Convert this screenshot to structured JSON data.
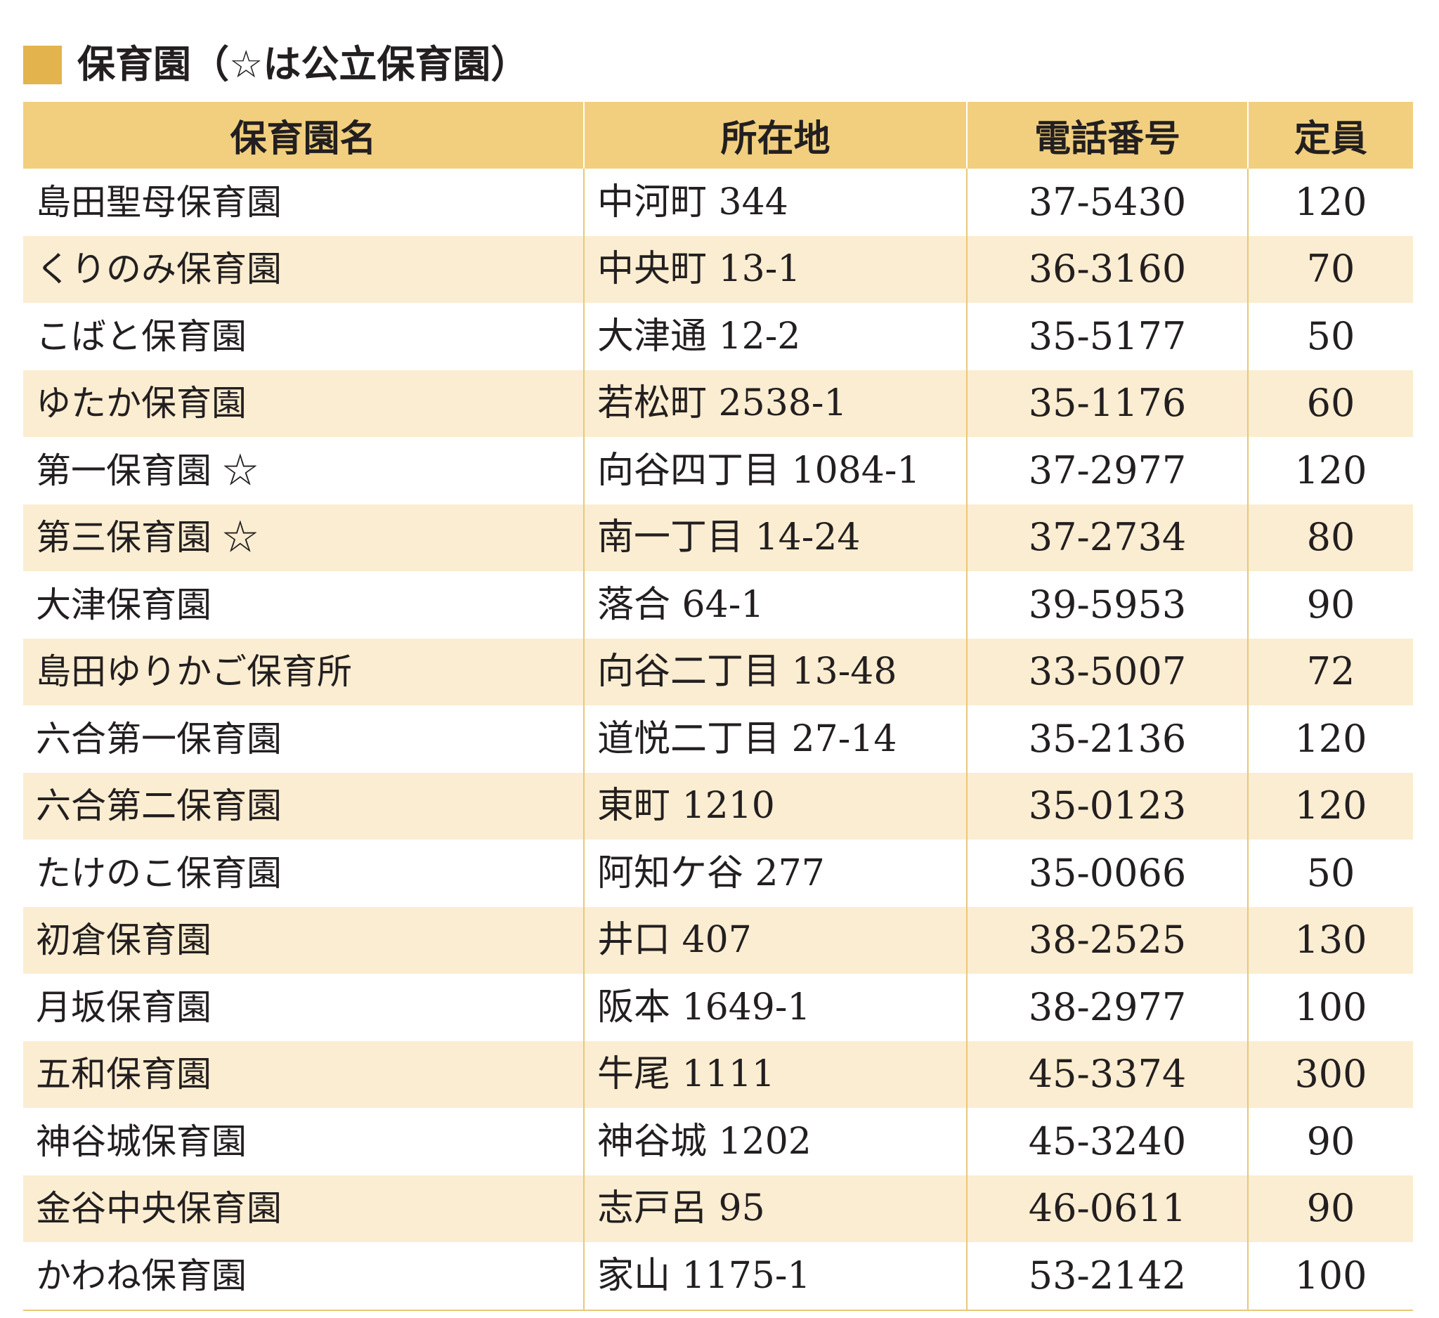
{
  "colors": {
    "accent": "#e3b34d",
    "header_bg": "#f1cf7e",
    "stripe_bg": "#fbedd1",
    "row_bg": "#ffffff",
    "rule": "#e7c87a"
  },
  "title": "保育園（☆は公立保育園）",
  "headers": [
    "保育園名",
    "所在地",
    "電話番号",
    "定員"
  ],
  "rows": [
    [
      "島田聖母保育園",
      "中河町 344",
      "37-5430",
      "120"
    ],
    [
      "くりのみ保育園",
      "中央町 13-1",
      "36-3160",
      "70"
    ],
    [
      "こばと保育園",
      "大津通 12-2",
      "35-5177",
      "50"
    ],
    [
      "ゆたか保育園",
      "若松町 2538-1",
      "35-1176",
      "60"
    ],
    [
      "第一保育園 ☆",
      "向谷四丁目 1084-1",
      "37-2977",
      "120"
    ],
    [
      "第三保育園 ☆",
      "南一丁目 14-24",
      "37-2734",
      "80"
    ],
    [
      "大津保育園",
      "落合 64-1",
      "39-5953",
      "90"
    ],
    [
      "島田ゆりかご保育所",
      "向谷二丁目 13-48",
      "33-5007",
      "72"
    ],
    [
      "六合第一保育園",
      "道悦二丁目 27-14",
      "35-2136",
      "120"
    ],
    [
      "六合第二保育園",
      "東町 1210",
      "35-0123",
      "120"
    ],
    [
      "たけのこ保育園",
      "阿知ケ谷 277",
      "35-0066",
      "50"
    ],
    [
      "初倉保育園",
      "井口 407",
      "38-2525",
      "130"
    ],
    [
      "月坂保育園",
      "阪本 1649-1",
      "38-2977",
      "100"
    ],
    [
      "五和保育園",
      "牛尾 1111",
      "45-3374",
      "300"
    ],
    [
      "神谷城保育園",
      "神谷城 1202",
      "45-3240",
      "90"
    ],
    [
      "金谷中央保育園",
      "志戸呂 95",
      "46-0611",
      "90"
    ],
    [
      "かわね保育園",
      "家山 1175-1",
      "53-2142",
      "100"
    ]
  ]
}
